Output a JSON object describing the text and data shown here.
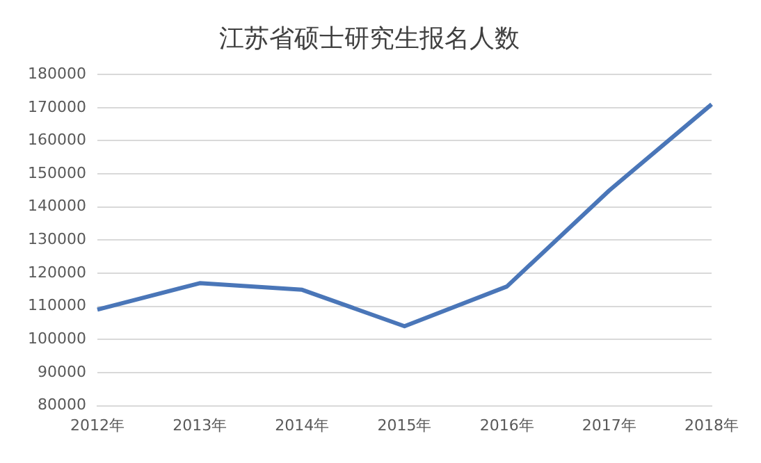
{
  "chart_data": {
    "type": "line",
    "title": "江苏省硕士研究生报名人数",
    "categories": [
      "2012年",
      "2013年",
      "2014年",
      "2015年",
      "2016年",
      "2017年",
      "2018年"
    ],
    "series": [
      {
        "color": "#4a76b8",
        "values": [
          109000,
          117000,
          115000,
          104000,
          116000,
          145000,
          171000
        ]
      }
    ],
    "ylim": [
      80000,
      180000
    ],
    "yticks": [
      80000,
      90000,
      100000,
      110000,
      120000,
      130000,
      140000,
      150000,
      160000,
      170000,
      180000
    ],
    "grid": "y",
    "legend": false,
    "marker": "none",
    "line_style": "solid"
  }
}
